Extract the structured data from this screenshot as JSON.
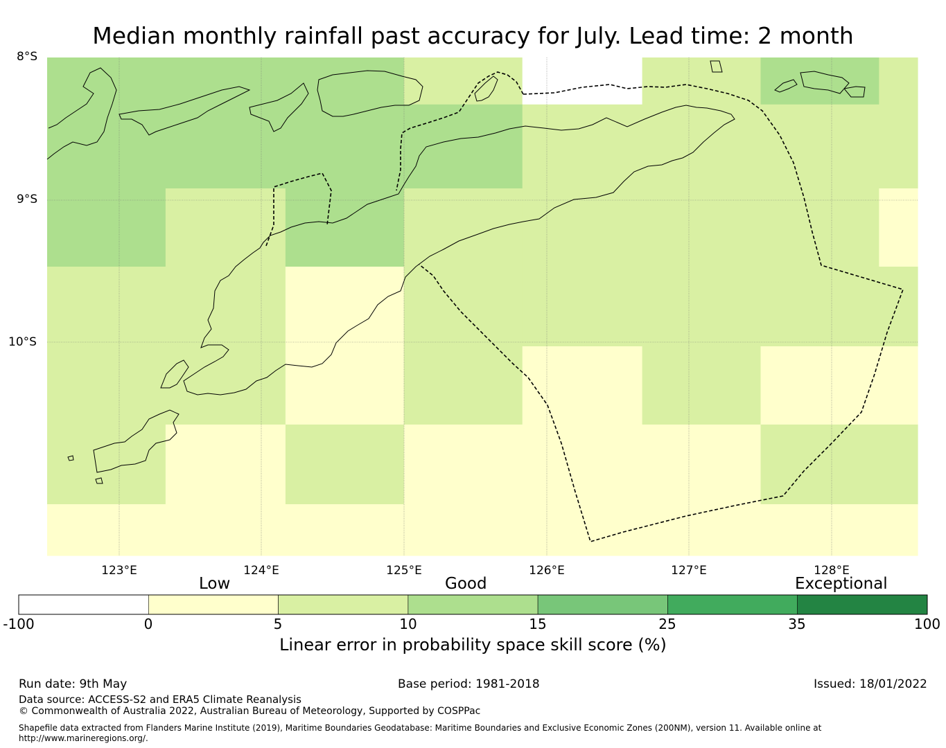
{
  "title": "Median monthly rainfall past accuracy for July. Lead time: 2 month",
  "map": {
    "lat_labels": [
      "8°S",
      "9°S",
      "10°S"
    ],
    "lon_labels": [
      "123°E",
      "124°E",
      "125°E",
      "126°E",
      "127°E",
      "128°E"
    ],
    "lon_range": [
      122.5,
      128.6
    ],
    "lat_range": [
      -8.0,
      -11.5
    ],
    "grid_cells": {
      "lon_edges": [
        122.5,
        123.33,
        124.17,
        125.0,
        125.83,
        126.67,
        127.5,
        128.33,
        128.6
      ],
      "lat_edges": [
        -8.0,
        -8.33,
        -8.92,
        -9.47,
        -10.03,
        -10.58,
        -11.14,
        -11.5
      ],
      "colors_by_row": [
        [
          "#addf8e",
          "#addf8e",
          "#addf8e",
          "#d9f0a3",
          "#ffffff",
          "#d9f0a3",
          "#addf8e",
          "#d9f0a3"
        ],
        [
          "#addf8e",
          "#addf8e",
          "#addf8e",
          "#addf8e",
          "#d9f0a3",
          "#d9f0a3",
          "#d9f0a3",
          "#d9f0a3"
        ],
        [
          "#addf8e",
          "#d9f0a3",
          "#addf8e",
          "#d9f0a3",
          "#d9f0a3",
          "#d9f0a3",
          "#d9f0a3",
          "#ffffcc"
        ],
        [
          "#d9f0a3",
          "#d9f0a3",
          "#ffffcc",
          "#d9f0a3",
          "#d9f0a3",
          "#d9f0a3",
          "#d9f0a3",
          "#d9f0a3"
        ],
        [
          "#d9f0a3",
          "#d9f0a3",
          "#ffffcc",
          "#d9f0a3",
          "#ffffcc",
          "#d9f0a3",
          "#ffffcc",
          "#ffffcc"
        ],
        [
          "#d9f0a3",
          "#ffffcc",
          "#d9f0a3",
          "#ffffcc",
          "#ffffcc",
          "#ffffcc",
          "#d9f0a3",
          "#d9f0a3"
        ],
        [
          "#ffffcc",
          "#ffffcc",
          "#ffffcc",
          "#ffffcc",
          "#ffffcc",
          "#ffffcc",
          "#ffffcc",
          "#ffffcc"
        ]
      ]
    }
  },
  "legend": {
    "categories": [
      "Low",
      "Good",
      "Exceptional"
    ],
    "bounds": [
      "-100",
      "0",
      "5",
      "10",
      "15",
      "25",
      "35",
      "100"
    ],
    "colors": [
      "#ffffff",
      "#ffffcc",
      "#d9f0a3",
      "#addf8e",
      "#78c679",
      "#41ab5d",
      "#238443"
    ],
    "label": "Linear error in probability space skill score (%)"
  },
  "footer": {
    "run_date": "Run date: 9th May",
    "base_period": "Base period: 1981-2018",
    "issued": "Issued: 18/01/2022",
    "data_source": "Data source: ACCESS-S2 and ERA5 Climate Reanalysis",
    "copyright": "© Commonwealth of Australia 2022, Australian Bureau of Meteorology, Supported by COSPPac",
    "shapefile_line1": "Shapefile data extracted from Flanders Marine Institute (2019), Maritime Boundaries Geodatabase: Maritime Boundaries and Exclusive Economic Zones (200NM), version 11. Available online at",
    "shapefile_line2": "http://www.marineregions.org/."
  }
}
